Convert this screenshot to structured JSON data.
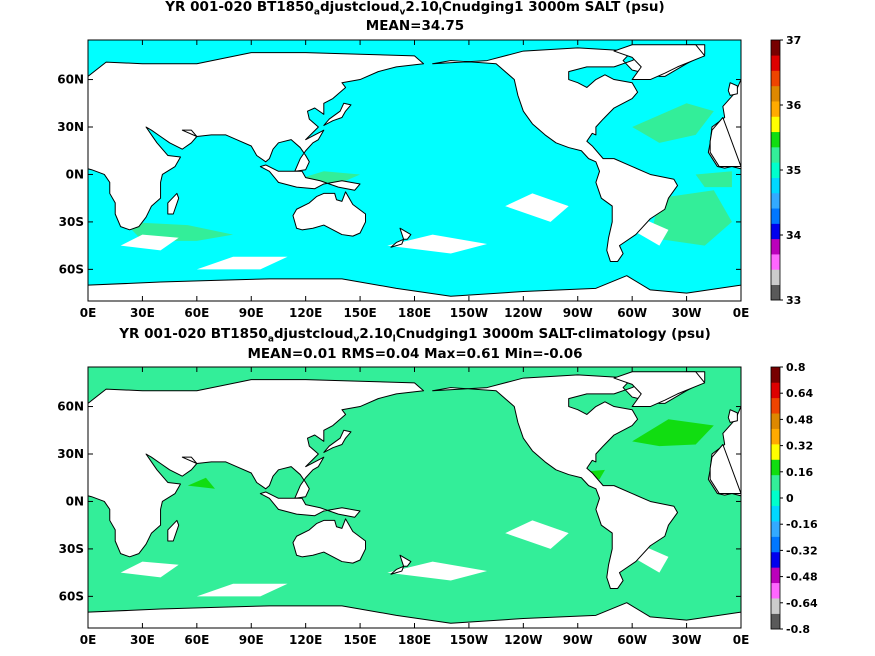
{
  "panels": [
    {
      "title_parts": [
        "YR 001-020 BT1850",
        "a",
        "djustcloud",
        "v",
        "2.10",
        "l",
        "Cnudging1 3000m SALT (psu)"
      ],
      "subtitle": "MEAN=34.75",
      "colorbar_labels": [
        "37",
        "36",
        "35",
        "34",
        "33"
      ],
      "ocean_color": "#00ffff",
      "blob_color": "#33ee99"
    },
    {
      "title_parts": [
        "YR 001-020 BT1850",
        "a",
        "djustcloud",
        "v",
        "2.10",
        "l",
        "Cnudging1 3000m SALT-climatology (psu)"
      ],
      "subtitle": "MEAN=0.01   RMS=0.04   Max=0.61   Min=-0.06",
      "colorbar_labels": [
        "0.8",
        "0.64",
        "0.48",
        "0.32",
        "0.16",
        "0",
        "-0.16",
        "-0.32",
        "-0.48",
        "-0.64",
        "-0.8"
      ],
      "ocean_color": "#33ee99",
      "blob_color": "#11dd11"
    }
  ],
  "x_labels": [
    "0E",
    "30E",
    "60E",
    "90E",
    "120E",
    "150E",
    "180E",
    "150W",
    "120W",
    "90W",
    "60W",
    "30W",
    "0E"
  ],
  "y_labels": [
    "60N",
    "30N",
    "0N",
    "30S",
    "60S"
  ],
  "colorbar_colors": [
    "#5a5a5a",
    "#cccccc",
    "#ff66ff",
    "#bb00bb",
    "#0000ee",
    "#0077ff",
    "#33aaff",
    "#00d8ff",
    "#00ffcc",
    "#33ee99",
    "#11dd11",
    "#ffff00",
    "#ffaa00",
    "#dd8800",
    "#ee4400",
    "#dd0000",
    "#770000"
  ]
}
